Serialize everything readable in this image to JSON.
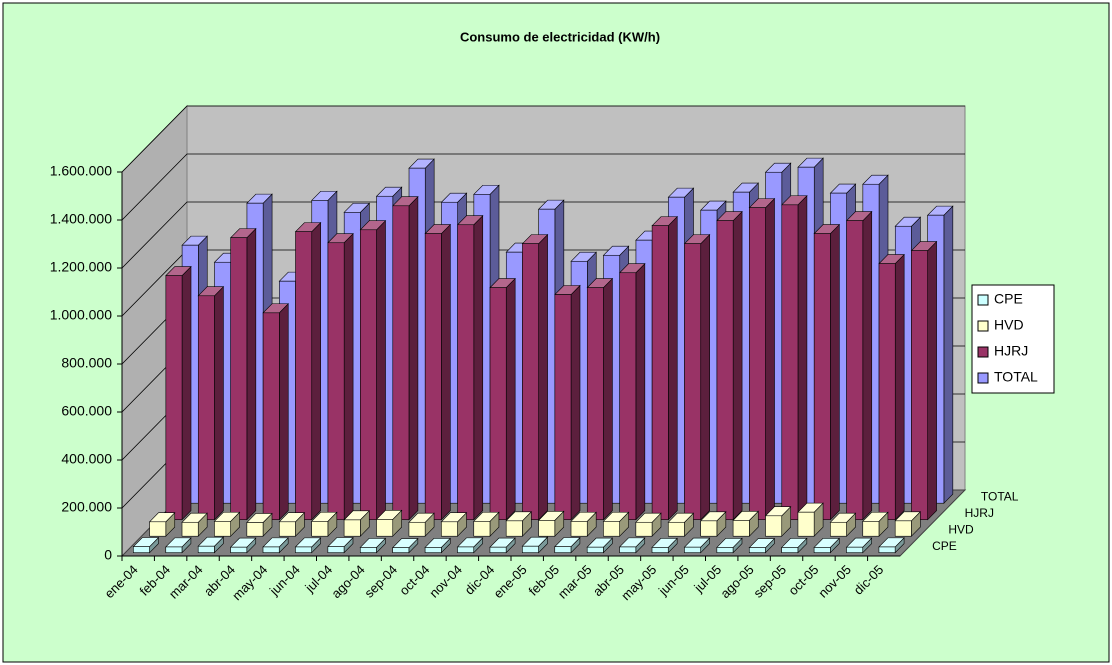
{
  "chart_data": {
    "type": "bar3d",
    "title": "Consumo de electricidad (KW/h)",
    "categories": [
      "ene-04",
      "feb-04",
      "mar-04",
      "abr-04",
      "may-04",
      "jun-04",
      "jul-04",
      "ago-04",
      "sep-04",
      "oct-04",
      "nov-04",
      "dic-04",
      "ene-05",
      "feb-05",
      "mar-05",
      "abr-05",
      "may-05",
      "jun-05",
      "jul-05",
      "ago-05",
      "sep-05",
      "oct-05",
      "nov-05",
      "dic-05"
    ],
    "series": [
      {
        "name": "CPE",
        "color": "#ccffff",
        "values": [
          25000,
          24000,
          27000,
          23000,
          24000,
          24000,
          25000,
          22000,
          21000,
          22000,
          24000,
          23000,
          27000,
          25000,
          23000,
          24000,
          22000,
          23000,
          22000,
          21000,
          22000,
          22000,
          23000,
          24000
        ]
      },
      {
        "name": "HVD",
        "color": "#ffffcc",
        "values": [
          60000,
          58000,
          62000,
          57000,
          60000,
          62000,
          68000,
          70000,
          58000,
          60000,
          62000,
          64000,
          66000,
          62000,
          62000,
          58000,
          58000,
          64000,
          66000,
          85000,
          100000,
          58000,
          62000,
          64000
        ]
      },
      {
        "name": "HJRJ",
        "color": "#993366",
        "values": [
          1017000,
          933000,
          1175000,
          862000,
          1200000,
          1154000,
          1208000,
          1308000,
          1192000,
          1229000,
          967000,
          1150000,
          938000,
          967000,
          1029000,
          1225000,
          1150000,
          1246000,
          1300000,
          1312000,
          1192000,
          1246000,
          1067000,
          1121000
        ]
      },
      {
        "name": "TOTAL",
        "color": "#9999ff",
        "values": [
          1075000,
          1004000,
          1250000,
          925000,
          1262000,
          1212000,
          1279000,
          1396000,
          1254000,
          1287000,
          1046000,
          1225000,
          1008000,
          1033000,
          1096000,
          1275000,
          1221000,
          1296000,
          1379000,
          1400000,
          1292000,
          1329000,
          1154000,
          1200000
        ]
      }
    ],
    "ylim": [
      0,
      1600000
    ],
    "yticks": [
      0,
      {
        "value": 200000,
        "label": "200.000"
      },
      {
        "value": 400000,
        "label": "400.000"
      },
      {
        "value": 600000,
        "label": "600.000"
      },
      {
        "value": 800000,
        "label": "800.000"
      },
      {
        "value": 1000000,
        "label": "1.000.000"
      },
      {
        "value": 1200000,
        "label": "1.200.000"
      },
      {
        "value": 1400000,
        "label": "1.400.000"
      },
      {
        "value": 1600000,
        "label": "1.600.000"
      }
    ],
    "grid": true,
    "legend": "right"
  }
}
